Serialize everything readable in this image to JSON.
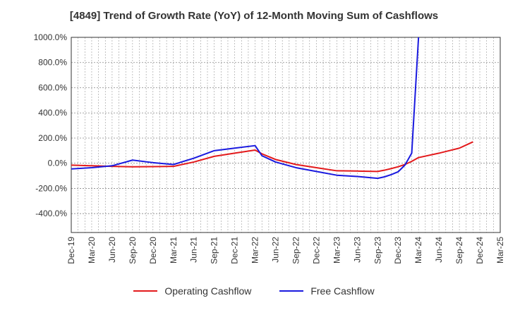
{
  "chart_data": {
    "type": "line",
    "title": "[4849]  Trend of Growth Rate (YoY) of 12-Month Moving Sum of Cashflows",
    "xlabel": "",
    "ylabel": "",
    "ylim": [
      -550,
      1000
    ],
    "yticks": [
      1000,
      800,
      600,
      400,
      200,
      0,
      -200,
      -400
    ],
    "ytick_labels": [
      "1000.0%",
      "800.0%",
      "600.0%",
      "400.0%",
      "200.0%",
      "0.0%",
      "-200.0%",
      "-400.0%"
    ],
    "x_start": "Dec-19",
    "x_end": "Mar-25",
    "xtick_labels": [
      "Dec-19",
      "Mar-20",
      "Jun-20",
      "Sep-20",
      "Dec-20",
      "Mar-21",
      "Jun-21",
      "Sep-21",
      "Dec-21",
      "Mar-22",
      "Jun-22",
      "Sep-22",
      "Dec-22",
      "Mar-23",
      "Jun-23",
      "Sep-23",
      "Dec-23",
      "Mar-24",
      "Jun-24",
      "Sep-24",
      "Dec-24",
      "Mar-25"
    ],
    "grid": true,
    "legend_position": "bottom",
    "series": [
      {
        "name": "Operating Cashflow",
        "color": "#e31a1c",
        "points": [
          [
            "Dec-19",
            -15
          ],
          [
            "Mar-20",
            -20
          ],
          [
            "Jun-20",
            -25
          ],
          [
            "Sep-20",
            -28
          ],
          [
            "Dec-20",
            -27
          ],
          [
            "Mar-21",
            -25
          ],
          [
            "Jun-21",
            10
          ],
          [
            "Sep-21",
            55
          ],
          [
            "Dec-21",
            80
          ],
          [
            "Mar-22",
            105
          ],
          [
            "Apr-22",
            75
          ],
          [
            "Jun-22",
            30
          ],
          [
            "Sep-22",
            -10
          ],
          [
            "Dec-22",
            -35
          ],
          [
            "Mar-23",
            -60
          ],
          [
            "Jun-23",
            -62
          ],
          [
            "Sep-23",
            -65
          ],
          [
            "Oct-23",
            -55
          ],
          [
            "Nov-23",
            -42
          ],
          [
            "Dec-23",
            -28
          ],
          [
            "Jan-24",
            -10
          ],
          [
            "Feb-24",
            15
          ],
          [
            "Mar-24",
            45
          ],
          [
            "Jun-24",
            80
          ],
          [
            "Sep-24",
            120
          ],
          [
            "Oct-24",
            145
          ],
          [
            "Nov-24",
            170
          ]
        ]
      },
      {
        "name": "Free Cashflow",
        "color": "#1a1adf",
        "points": [
          [
            "Dec-19",
            -45
          ],
          [
            "Mar-20",
            -35
          ],
          [
            "Jun-20",
            -20
          ],
          [
            "Sep-20",
            25
          ],
          [
            "Dec-20",
            5
          ],
          [
            "Mar-21",
            -10
          ],
          [
            "Jun-21",
            40
          ],
          [
            "Sep-21",
            100
          ],
          [
            "Dec-21",
            120
          ],
          [
            "Mar-22",
            140
          ],
          [
            "Apr-22",
            60
          ],
          [
            "Jun-22",
            10
          ],
          [
            "Sep-22",
            -35
          ],
          [
            "Dec-22",
            -65
          ],
          [
            "Mar-23",
            -95
          ],
          [
            "Jun-23",
            -105
          ],
          [
            "Sep-23",
            -120
          ],
          [
            "Oct-23",
            -108
          ],
          [
            "Nov-23",
            -90
          ],
          [
            "Dec-23",
            -68
          ],
          [
            "Jan-24",
            -15
          ],
          [
            "Feb-24",
            80
          ],
          [
            "Mar-24",
            1000
          ]
        ]
      }
    ]
  }
}
